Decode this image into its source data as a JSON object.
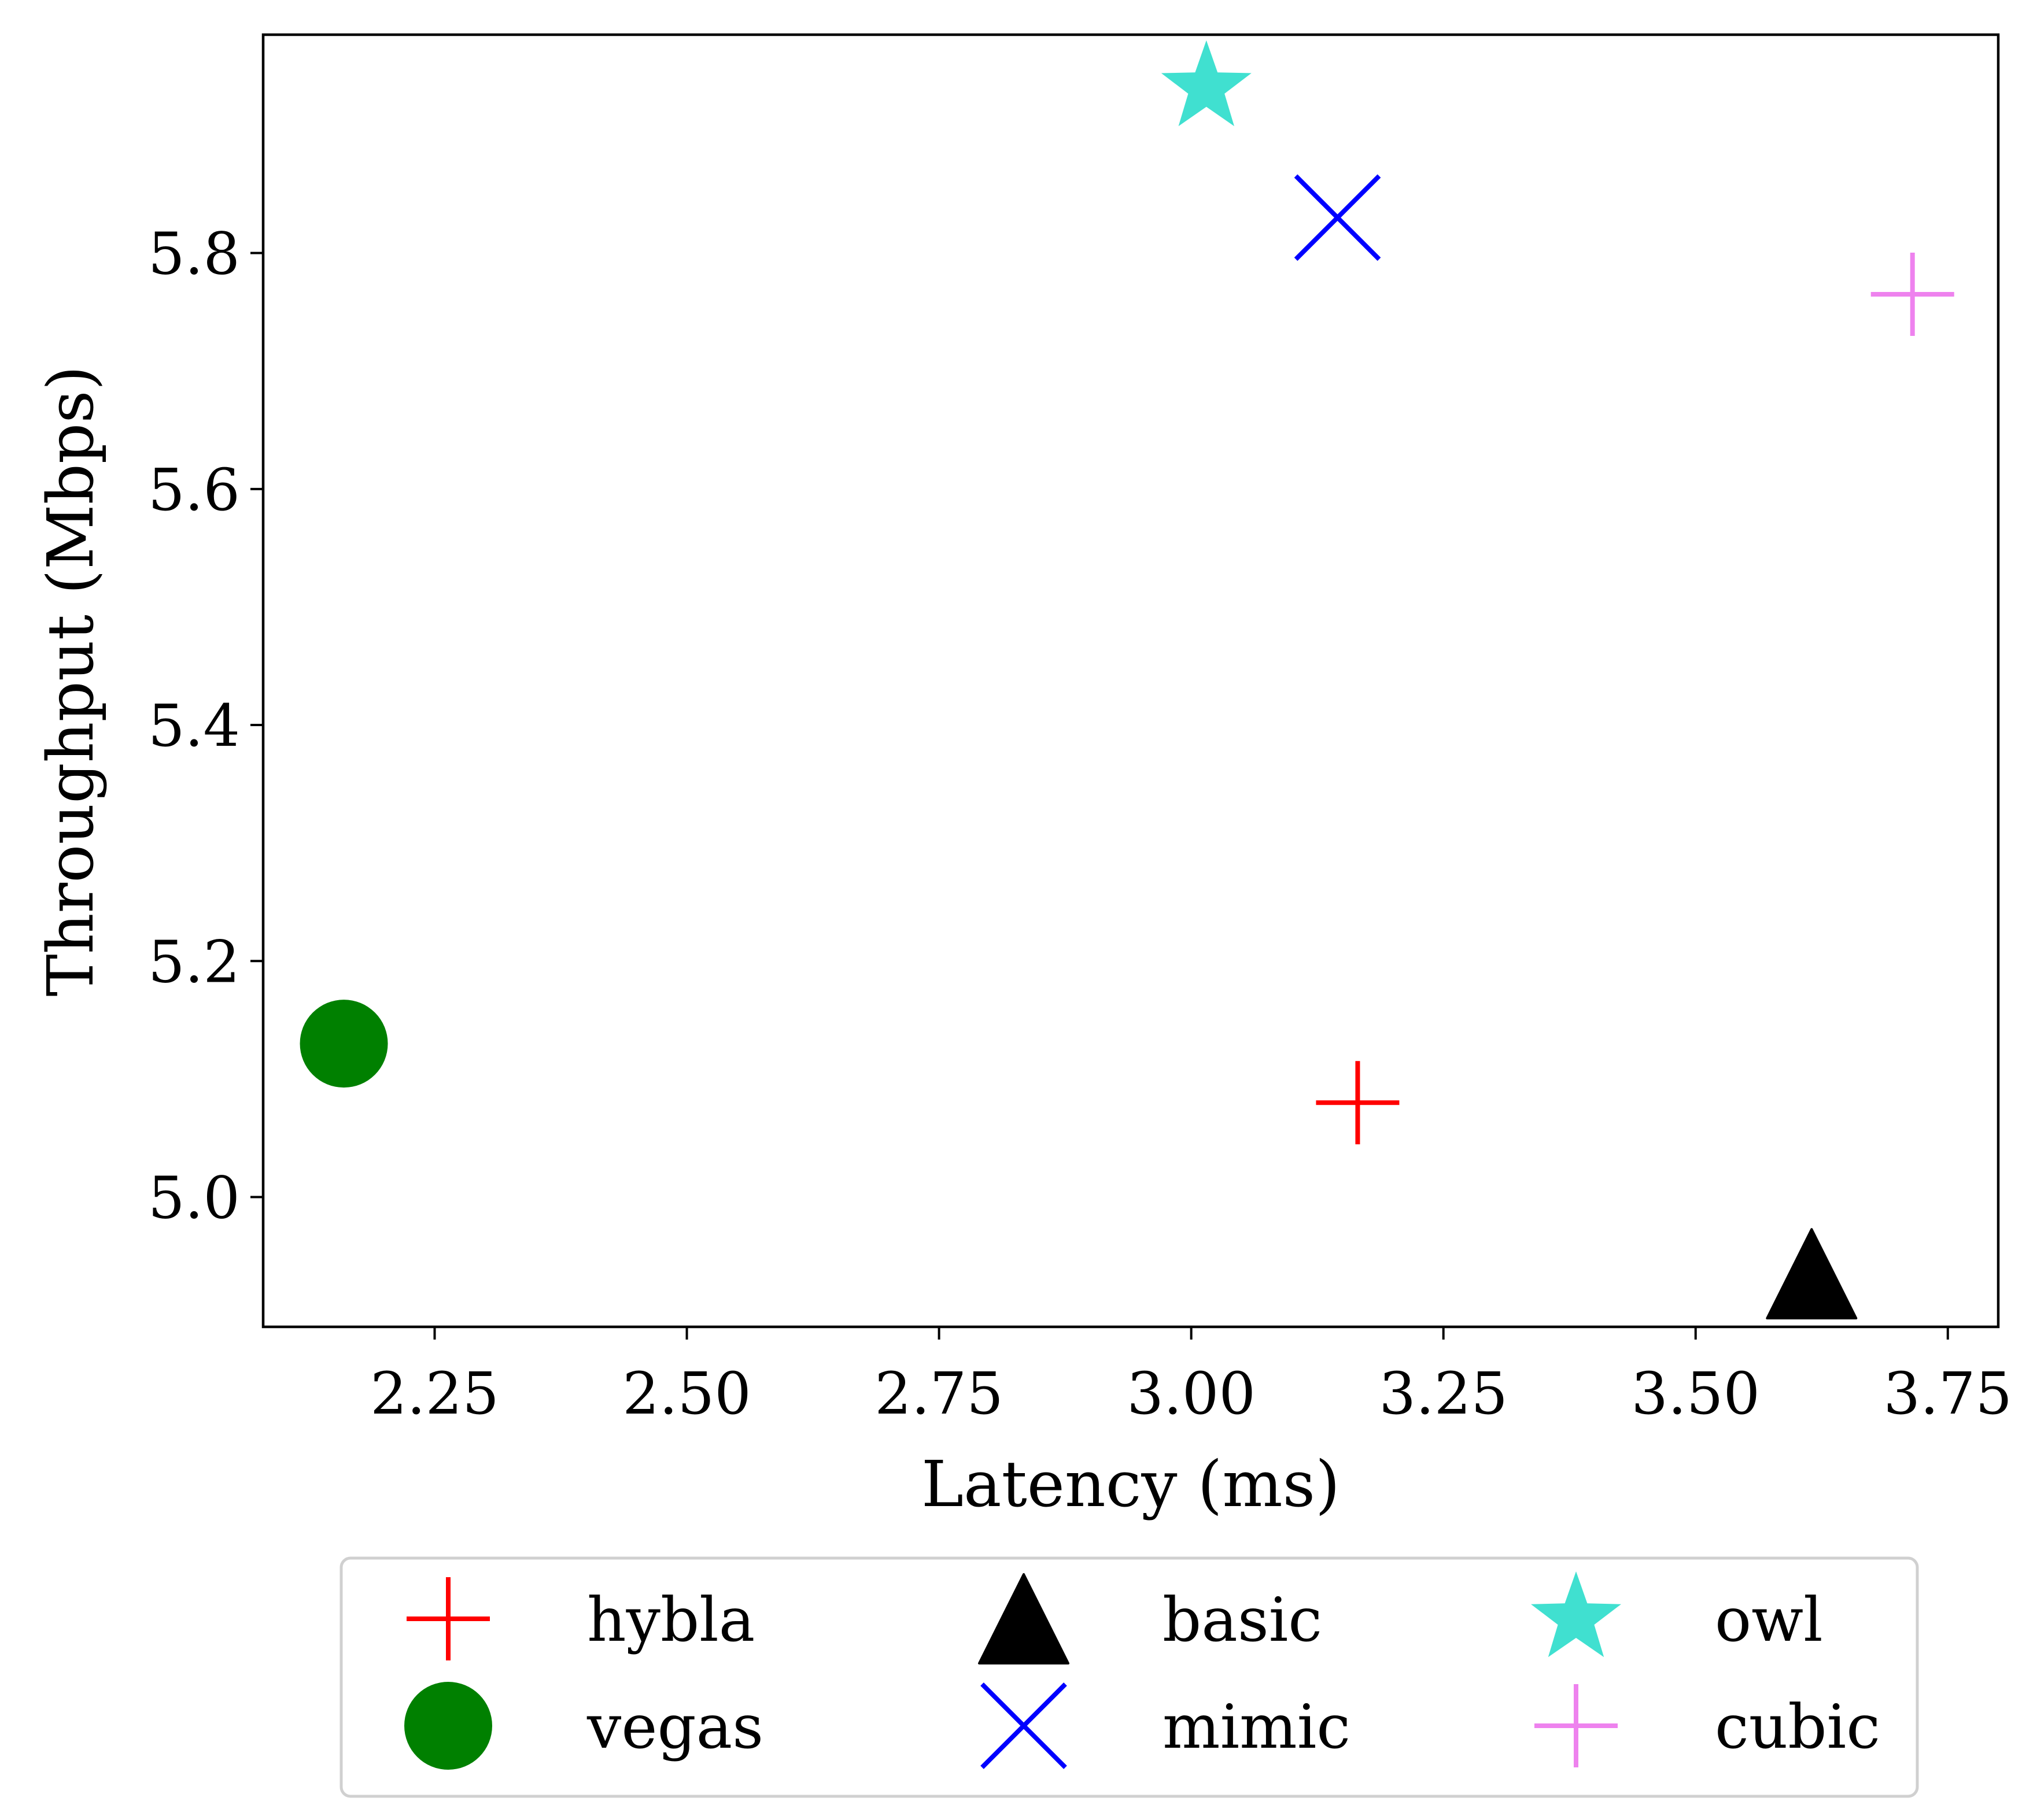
{
  "chart_data": {
    "type": "scatter",
    "title": "",
    "xlabel": "Latency (ms)",
    "ylabel": "Throughput (Mbps)",
    "xlim": [
      2.08,
      3.8
    ],
    "ylim": [
      4.89,
      5.985
    ],
    "xticks": [
      2.25,
      2.5,
      2.75,
      3.0,
      3.25,
      3.5,
      3.75
    ],
    "xtick_labels": [
      "2.25",
      "2.50",
      "2.75",
      "3.00",
      "3.25",
      "3.50",
      "3.75"
    ],
    "yticks": [
      5.0,
      5.2,
      5.4,
      5.6,
      5.8
    ],
    "ytick_labels": [
      "5.0",
      "5.2",
      "5.4",
      "5.6",
      "5.8"
    ],
    "grid": false,
    "legend_position": "below",
    "series": [
      {
        "name": "hybla",
        "marker": "plus",
        "color": "#ff0000",
        "points": [
          {
            "x": 3.165,
            "y": 5.08
          }
        ]
      },
      {
        "name": "vegas",
        "marker": "circle",
        "color": "#008000",
        "points": [
          {
            "x": 2.16,
            "y": 5.13
          }
        ]
      },
      {
        "name": "basic",
        "marker": "triangle",
        "color": "#000000",
        "points": [
          {
            "x": 3.615,
            "y": 4.935
          }
        ]
      },
      {
        "name": "mimic",
        "marker": "x",
        "color": "#0000ff",
        "points": [
          {
            "x": 3.145,
            "y": 5.83
          }
        ]
      },
      {
        "name": "owl",
        "marker": "star",
        "color": "#40e0d0",
        "points": [
          {
            "x": 3.015,
            "y": 5.94
          }
        ]
      },
      {
        "name": "cubic",
        "marker": "plus",
        "color": "#ee82ee",
        "points": [
          {
            "x": 3.715,
            "y": 5.765
          }
        ]
      }
    ]
  }
}
